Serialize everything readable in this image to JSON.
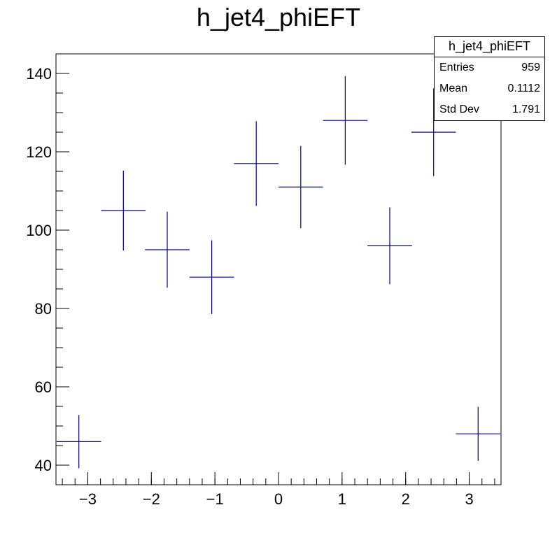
{
  "chart_data": {
    "type": "scatter",
    "title": "h_jet4_phiEFT",
    "xlim": [
      -3.5,
      3.5
    ],
    "ylim": [
      35,
      145
    ],
    "x_ticks": [
      -3,
      -2,
      -1,
      0,
      1,
      2,
      3
    ],
    "x_tick_labels": [
      "−3",
      "−2",
      "−1",
      "0",
      "1",
      "2",
      "3"
    ],
    "y_ticks": [
      40,
      60,
      80,
      100,
      120,
      140
    ],
    "y_tick_labels": [
      "40",
      "60",
      "80",
      "100",
      "120",
      "140"
    ],
    "series": [
      {
        "points": [
          {
            "x": -3.14,
            "xerr": 0.35,
            "y": 46,
            "yerr": 6.8
          },
          {
            "x": -2.44,
            "xerr": 0.35,
            "y": 105,
            "yerr": 10.2
          },
          {
            "x": -1.75,
            "xerr": 0.35,
            "y": 95,
            "yerr": 9.7
          },
          {
            "x": -1.05,
            "xerr": 0.35,
            "y": 88,
            "yerr": 9.4
          },
          {
            "x": -0.35,
            "xerr": 0.35,
            "y": 117,
            "yerr": 10.8
          },
          {
            "x": 0.35,
            "xerr": 0.35,
            "y": 111,
            "yerr": 10.5
          },
          {
            "x": 1.05,
            "xerr": 0.35,
            "y": 128,
            "yerr": 11.3
          },
          {
            "x": 1.75,
            "xerr": 0.35,
            "y": 96,
            "yerr": 9.8
          },
          {
            "x": 2.44,
            "xerr": 0.35,
            "y": 125,
            "yerr": 11.2
          },
          {
            "x": 3.14,
            "xerr": 0.35,
            "y": 48,
            "yerr": 6.9
          }
        ]
      }
    ],
    "legend": "top-right",
    "grid": false,
    "colors": {
      "marker": "#000080",
      "axis": "#000000"
    }
  },
  "stats_box": {
    "title": "h_jet4_phiEFT",
    "entries_label": "Entries",
    "entries_value": "959",
    "mean_label": "Mean",
    "mean_value": "0.1112",
    "stddev_label": "Std Dev",
    "stddev_value": "1.791"
  }
}
